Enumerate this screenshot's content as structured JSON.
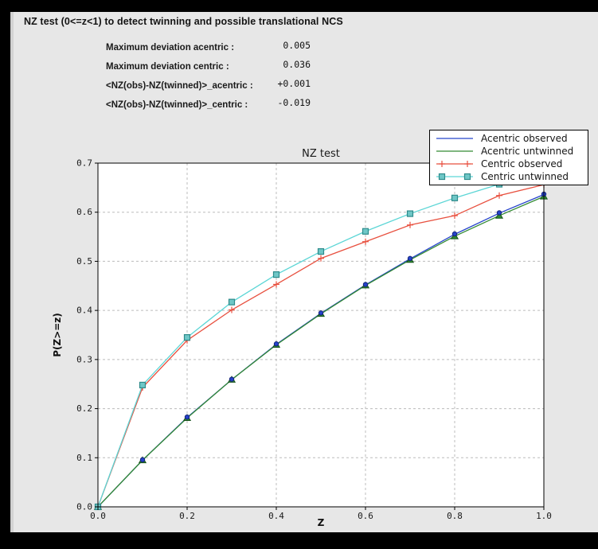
{
  "panel": {
    "heading": "NZ test (0<=z<1) to detect twinning and possible translational NCS",
    "stats": [
      {
        "label": "Maximum deviation acentric :",
        "value": "0.005"
      },
      {
        "label": "Maximum deviation centric :",
        "value": "0.036"
      },
      {
        "label": "<NZ(obs)-NZ(twinned)>_acentric :",
        "value": "+0.001"
      },
      {
        "label": "<NZ(obs)-NZ(twinned)>_centric :",
        "value": "-0.019"
      }
    ]
  },
  "colors": {
    "panel_bg": "#e7e7e7",
    "plot_bg": "#ffffff",
    "frame": "#000000",
    "acentric_observed": "#2543cb",
    "acentric_untwinned": "#338a33",
    "centric_observed": "#e8503f",
    "centric_untwinned": "#5cd6d6"
  },
  "chart_data": {
    "type": "line",
    "title": "NZ test",
    "xlabel": "Z",
    "ylabel": "P(Z>=z)",
    "xlim": [
      0.0,
      1.0
    ],
    "ylim": [
      0.0,
      0.7
    ],
    "xticks": [
      0.0,
      0.2,
      0.4,
      0.6,
      0.8,
      1.0
    ],
    "yticks": [
      0.0,
      0.1,
      0.2,
      0.3,
      0.4,
      0.5,
      0.6,
      0.7
    ],
    "grid": true,
    "grid_color": "#bcbcbc",
    "legend_position": "upper right",
    "marker_draw_order": [
      1,
      0,
      2,
      3
    ],
    "x": [
      0.0,
      0.1,
      0.2,
      0.3,
      0.4,
      0.5,
      0.6,
      0.7,
      0.8,
      0.9,
      1.0
    ],
    "series": [
      {
        "name": "Acentric observed",
        "color": "#2543cb",
        "marker": "circle",
        "marker_fill": "#2543cb",
        "marker_edge": "#16247a",
        "values": [
          0.0,
          0.095,
          0.182,
          0.259,
          0.331,
          0.394,
          0.452,
          0.505,
          0.555,
          0.598,
          0.636
        ]
      },
      {
        "name": "Acentric untwinned",
        "color": "#338a33",
        "marker": "triangle",
        "marker_fill": "#2f8b2f",
        "marker_edge": "#17521c",
        "values": [
          0.0,
          0.095,
          0.181,
          0.259,
          0.33,
          0.393,
          0.451,
          0.503,
          0.551,
          0.593,
          0.632
        ]
      },
      {
        "name": "Centric observed",
        "color": "#e8503f",
        "marker": "plus",
        "marker_fill": "#e8503f",
        "marker_edge": "#e8503f",
        "values": [
          0.0,
          0.243,
          0.339,
          0.401,
          0.453,
          0.506,
          0.54,
          0.574,
          0.593,
          0.634,
          0.656
        ]
      },
      {
        "name": "Centric untwinned",
        "color": "#5cd6d6",
        "marker": "square",
        "marker_fill": "#6fc7c7",
        "marker_edge": "#2e8b8b",
        "values": [
          0.0,
          0.248,
          0.345,
          0.417,
          0.473,
          0.52,
          0.561,
          0.597,
          0.629,
          0.657,
          0.683
        ]
      }
    ]
  }
}
